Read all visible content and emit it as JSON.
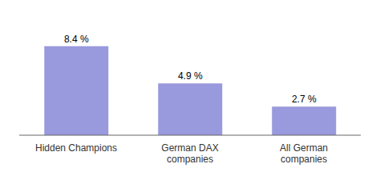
{
  "chart_data": {
    "type": "bar",
    "categories": [
      "Hidden Champions",
      "German DAX\ncompanies",
      "All German\ncompanies"
    ],
    "values": [
      8.4,
      4.9,
      2.7
    ],
    "value_labels": [
      "8.4 %",
      "4.9 %",
      "2.7 %"
    ],
    "data_labels": true,
    "color": "#9999dd",
    "ylim": [
      0,
      10.5
    ],
    "tick_labels": "x"
  }
}
